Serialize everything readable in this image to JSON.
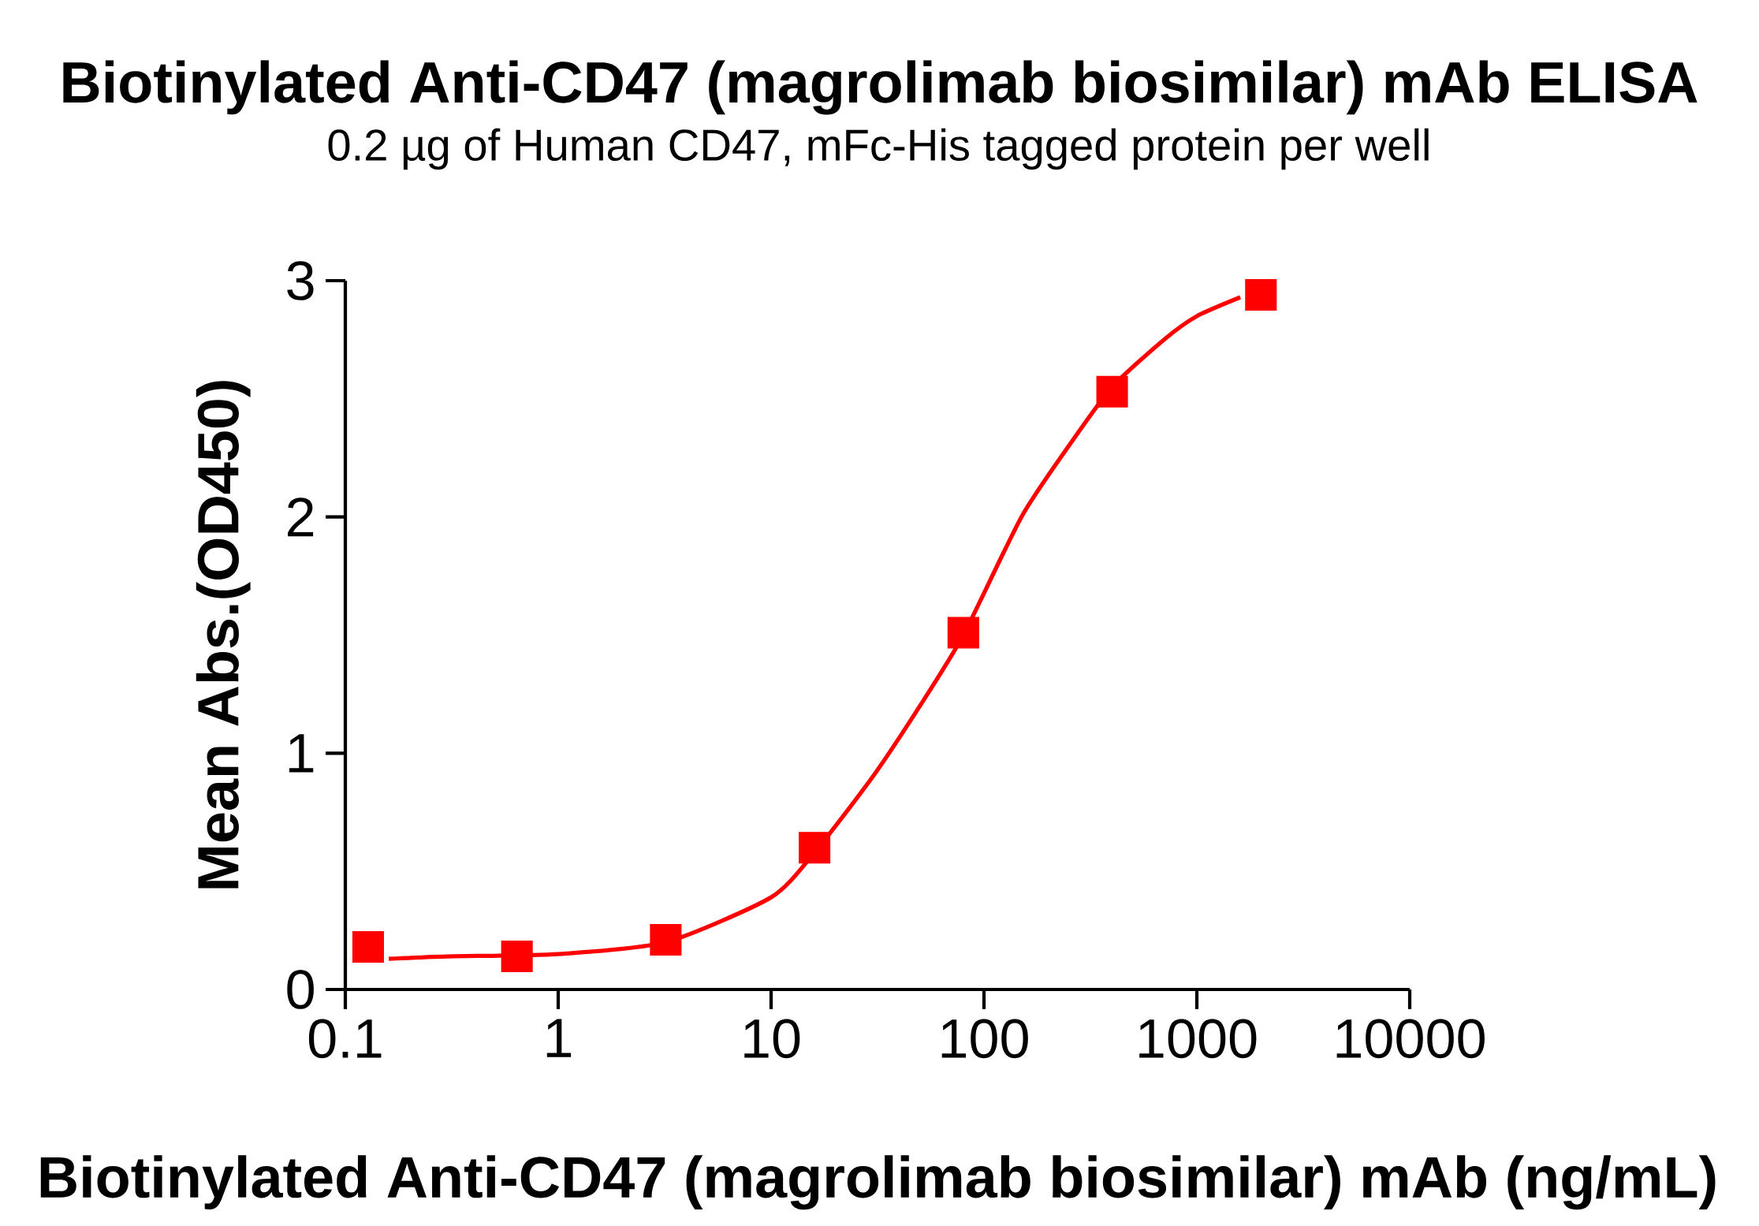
{
  "chart_data": {
    "type": "scatter",
    "title": "Biotinylated Anti-CD47 (magrolimab biosimilar) mAb ELISA",
    "subtitle": "0.2 µg of Human CD47, mFc-His tagged protein per well",
    "xlabel": "Biotinylated Anti-CD47 (magrolimab biosimilar) mAb (ng/mL)",
    "ylabel": "Mean Abs.(OD450)",
    "x": [
      0.128,
      0.64,
      3.2,
      16,
      80,
      400,
      2000
    ],
    "series": [
      {
        "color": "#ff0000",
        "marker": "square",
        "values": [
          0.18,
          0.14,
          0.21,
          0.6,
          1.51,
          2.53,
          2.94
        ]
      },
      {
        "type": "line",
        "color": "#ff0000",
        "marker": "none",
        "line_style": "solid",
        "x": [
          0.16,
          0.3,
          1,
          3.2,
          10,
          16,
          30,
          50,
          80,
          150,
          250,
          400,
          700,
          1000,
          1600
        ],
        "values": [
          0.13,
          0.14,
          0.15,
          0.2,
          0.39,
          0.58,
          0.9,
          1.2,
          1.5,
          2.0,
          2.3,
          2.55,
          2.75,
          2.85,
          2.93
        ]
      }
    ],
    "log": "x",
    "xlim": [
      0.1,
      10000
    ],
    "xticks": [
      0.1,
      1,
      10,
      100,
      1000,
      10000
    ],
    "ylim": [
      0,
      3
    ],
    "yticks": [
      0,
      1,
      2,
      3
    ],
    "grid": false
  }
}
